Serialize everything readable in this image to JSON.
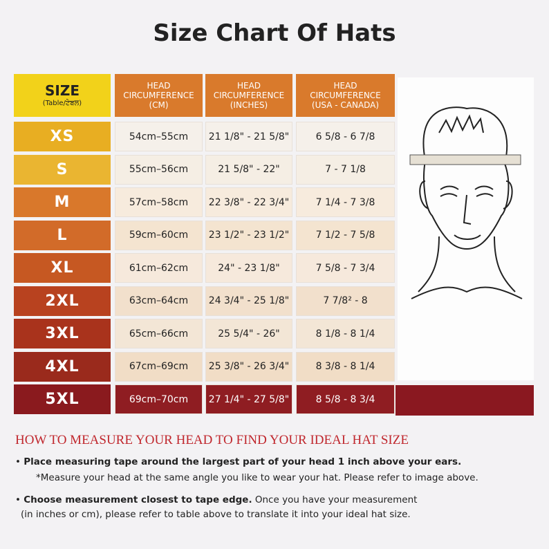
{
  "title": "Size Chart Of Hats",
  "table": {
    "size_header": {
      "title": "SIZE",
      "subtitle": "(Table/ਟੇਬਲ)"
    },
    "headers": [
      [
        "HEAD",
        "CIRCUMFERENCE",
        "(CM)"
      ],
      [
        "HEAD",
        "CIRCUMFERENCE",
        "(INCHES)"
      ],
      [
        "HEAD",
        "CIRCUMFERENCE",
        "(USA - CANADA)"
      ]
    ],
    "rows": [
      [
        "XS",
        "54cm–55cm",
        "21 1/8\" - 21 5/8\"",
        "6 5/8 - 6 7/8"
      ],
      [
        "S",
        "55cm–56cm",
        "21 5/8\" - 22\"",
        "7 - 7 1/8"
      ],
      [
        "M",
        "57cm–58cm",
        "22 3/8\" - 22 3/4\"",
        "7 1/4 - 7 3/8"
      ],
      [
        "L",
        "59cm–60cm",
        "23 1/2\" - 23 1/2\"",
        "7 1/2 - 7 5/8"
      ],
      [
        "XL",
        "61cm–62cm",
        "24\" - 23 1/8\"",
        "7 5/8 - 7 3/4"
      ],
      [
        "2XL",
        "63cm–64cm",
        "24 3/4\" - 25 1/8\"",
        "7 7/8² - 8"
      ],
      [
        "3XL",
        "65cm–66cm",
        "25 5/4\" - 26\"",
        "8 1/8 - 8 1/4"
      ],
      [
        "4XL",
        "67cm–69cm",
        "25 3/8\" - 26 3/4\"",
        "8 3/8 - 8 1/4"
      ],
      [
        "5XL",
        "69cm–70cm",
        "27 1/4\" - 27 5/8\"",
        "8 5/8 - 8 3/4"
      ]
    ]
  },
  "instructions": {
    "heading": "HOW TO MEASURE YOUR HEAD TO FIND YOUR IDEAL HAT SIZE",
    "step1": "Place measuring tape around the largest part of your head 1 inch above your ears.",
    "note": "*Measure your head at the same angle you like to wear your hat. Please refer to image above.",
    "step2_bold": "Choose measurement closest to tape edge.",
    "step2_rest": "Once you have your measurement",
    "step2_line2": "(in inches or cm), please refer to table above to translate it into your ideal hat size."
  }
}
